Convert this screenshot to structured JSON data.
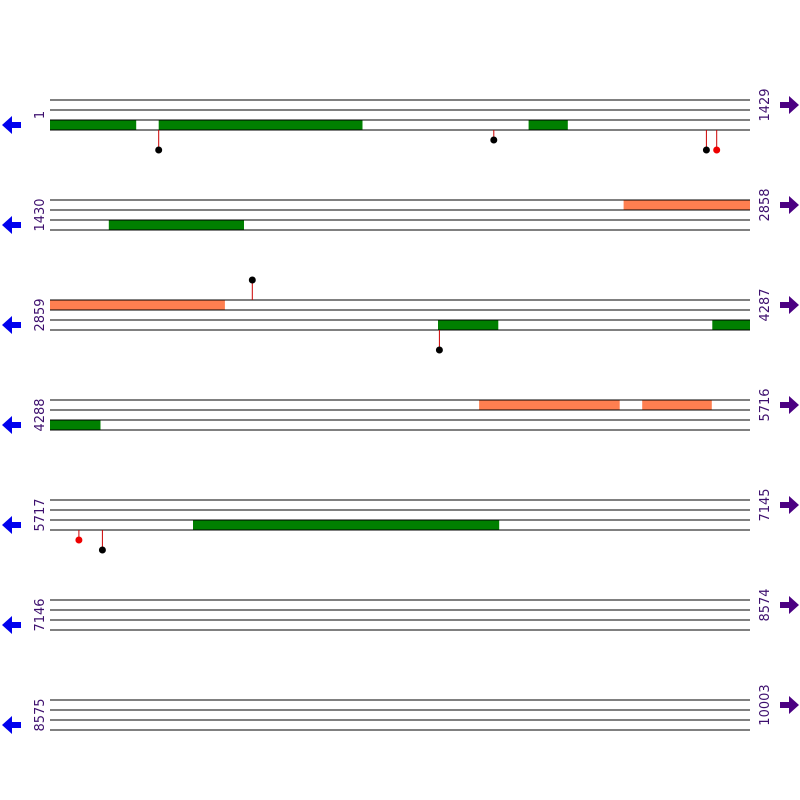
{
  "sequence_map": {
    "total_length": 10003,
    "bp_per_row": 1429,
    "colors": {
      "line": "#000000",
      "green_feature": "#008000",
      "orange_feature": "#ff7f50",
      "stem": "#cc0000",
      "marker_black": "#000000",
      "marker_red": "#ee0000",
      "left_arrow": "#0000ee",
      "right_arrow": "#4b0082",
      "number_text": "#3d0f6e"
    },
    "icons": {
      "left": "left-arrow-icon",
      "right": "right-arrow-icon"
    },
    "rows": [
      {
        "start": "1",
        "end": "1429",
        "features": [
          {
            "track": 2,
            "from": 1,
            "to": 176,
            "color": "green"
          },
          {
            "track": 2,
            "from": 223,
            "to": 638,
            "color": "green"
          },
          {
            "track": 2,
            "from": 978,
            "to": 1057,
            "color": "green"
          }
        ],
        "markers": [
          {
            "pos": 223,
            "side": "below",
            "length": 2,
            "color": "black"
          },
          {
            "pos": 907,
            "side": "below",
            "length": 1,
            "color": "black"
          },
          {
            "pos": 1341,
            "side": "below",
            "length": 2,
            "color": "black"
          },
          {
            "pos": 1362,
            "side": "below",
            "length": 2,
            "color": "red"
          }
        ]
      },
      {
        "start": "1430",
        "end": "2858",
        "features": [
          {
            "track": 0,
            "from": 2601,
            "to": 2858,
            "color": "orange"
          },
          {
            "track": 2,
            "from": 1550,
            "to": 1825,
            "color": "green"
          }
        ],
        "markers": []
      },
      {
        "start": "2859",
        "end": "4287",
        "features": [
          {
            "track": 0,
            "from": 2859,
            "to": 3215,
            "color": "orange"
          },
          {
            "track": 2,
            "from": 3651,
            "to": 3773,
            "color": "green"
          },
          {
            "track": 2,
            "from": 4211,
            "to": 4287,
            "color": "green"
          }
        ],
        "markers": [
          {
            "pos": 3272,
            "side": "above",
            "length": 2,
            "color": "black"
          },
          {
            "pos": 3654,
            "side": "below",
            "length": 2,
            "color": "black"
          }
        ]
      },
      {
        "start": "4288",
        "end": "5716",
        "features": [
          {
            "track": 0,
            "from": 5164,
            "to": 5450,
            "color": "orange"
          },
          {
            "track": 0,
            "from": 5497,
            "to": 5638,
            "color": "orange"
          },
          {
            "track": 2,
            "from": 4288,
            "to": 4390,
            "color": "green"
          }
        ],
        "markers": []
      },
      {
        "start": "5717",
        "end": "7145",
        "features": [
          {
            "track": 2,
            "from": 6009,
            "to": 6633,
            "color": "green"
          }
        ],
        "markers": [
          {
            "pos": 5776,
            "side": "below",
            "length": 1,
            "color": "red"
          },
          {
            "pos": 5824,
            "side": "below",
            "length": 2,
            "color": "black"
          }
        ]
      },
      {
        "start": "7146",
        "end": "8574",
        "features": [],
        "markers": []
      },
      {
        "start": "8575",
        "end": "10003",
        "features": [],
        "markers": []
      }
    ]
  }
}
